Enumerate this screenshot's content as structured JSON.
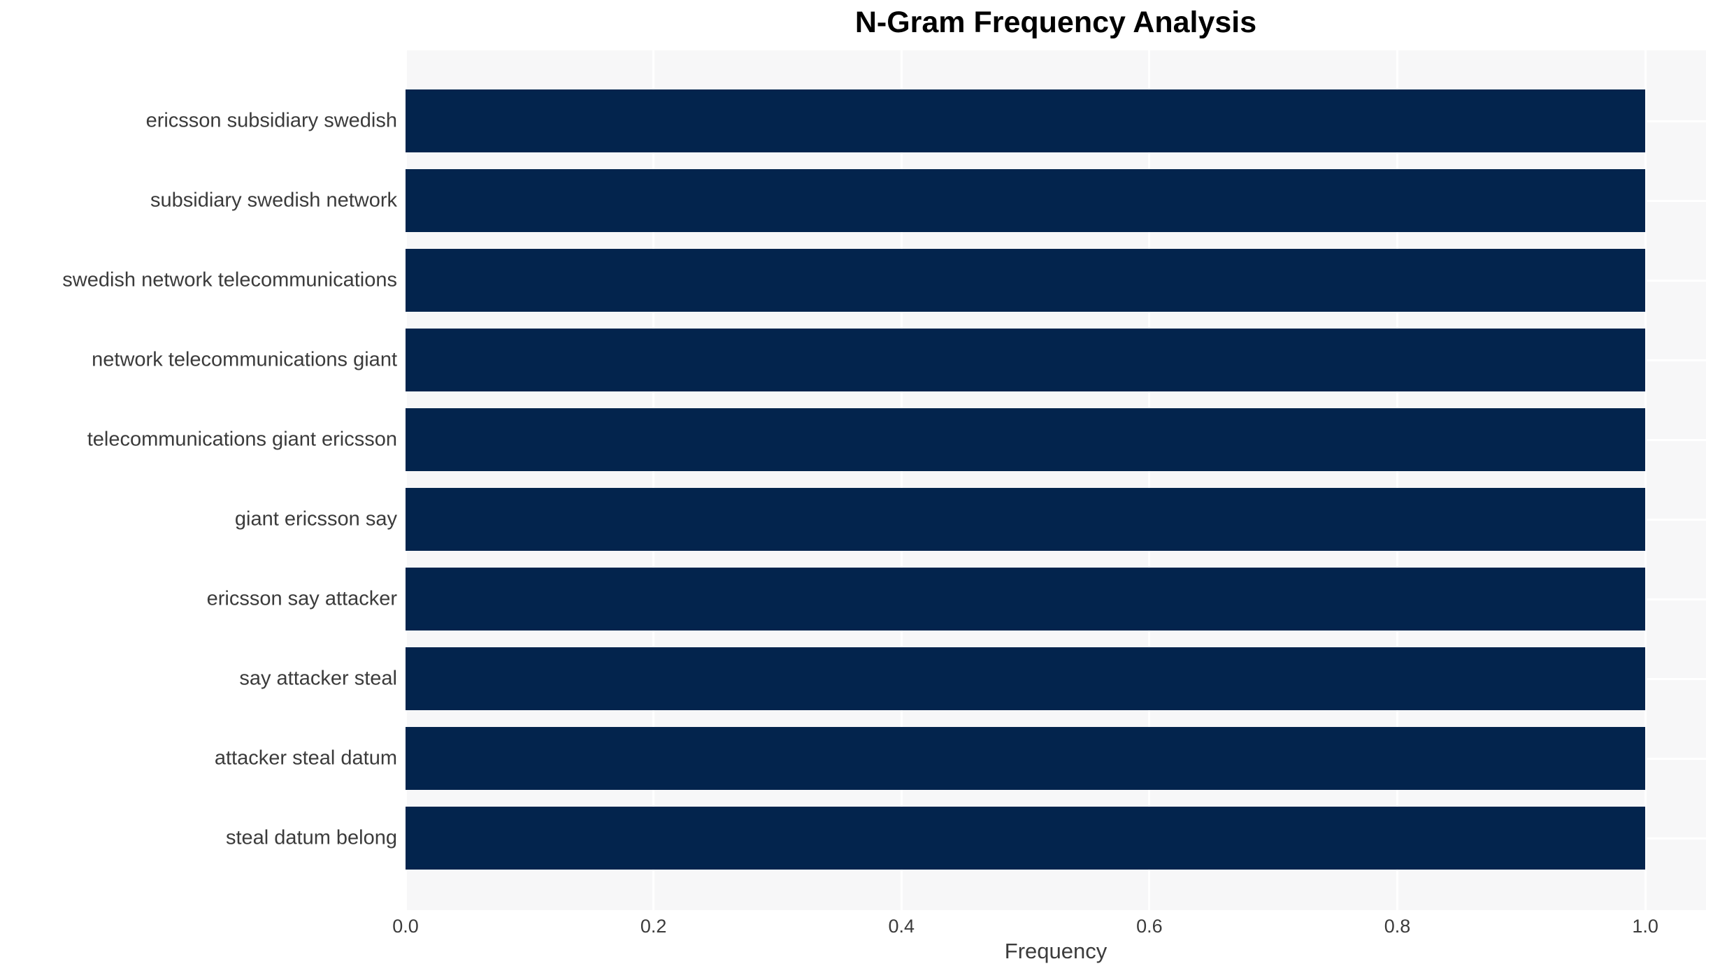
{
  "chart_data": {
    "type": "bar",
    "orientation": "horizontal",
    "title": "N-Gram Frequency Analysis",
    "xlabel": "Frequency",
    "ylabel": "",
    "categories": [
      "ericsson subsidiary swedish",
      "subsidiary swedish network",
      "swedish network telecommunications",
      "network telecommunications giant",
      "telecommunications giant ericsson",
      "giant ericsson say",
      "ericsson say attacker",
      "say attacker steal",
      "attacker steal datum",
      "steal datum belong"
    ],
    "values": [
      1.0,
      1.0,
      1.0,
      1.0,
      1.0,
      1.0,
      1.0,
      1.0,
      1.0,
      1.0
    ],
    "x_ticks": [
      0.0,
      0.2,
      0.4,
      0.6,
      0.8,
      1.0
    ],
    "xlim": [
      0,
      1.049
    ],
    "grid": true,
    "legend": false,
    "colors": {
      "bar": "#03244d",
      "plot_bg": "#f7f7f8",
      "grid": "#ffffff",
      "text": "#3b3b3b",
      "title": "#000000"
    }
  }
}
